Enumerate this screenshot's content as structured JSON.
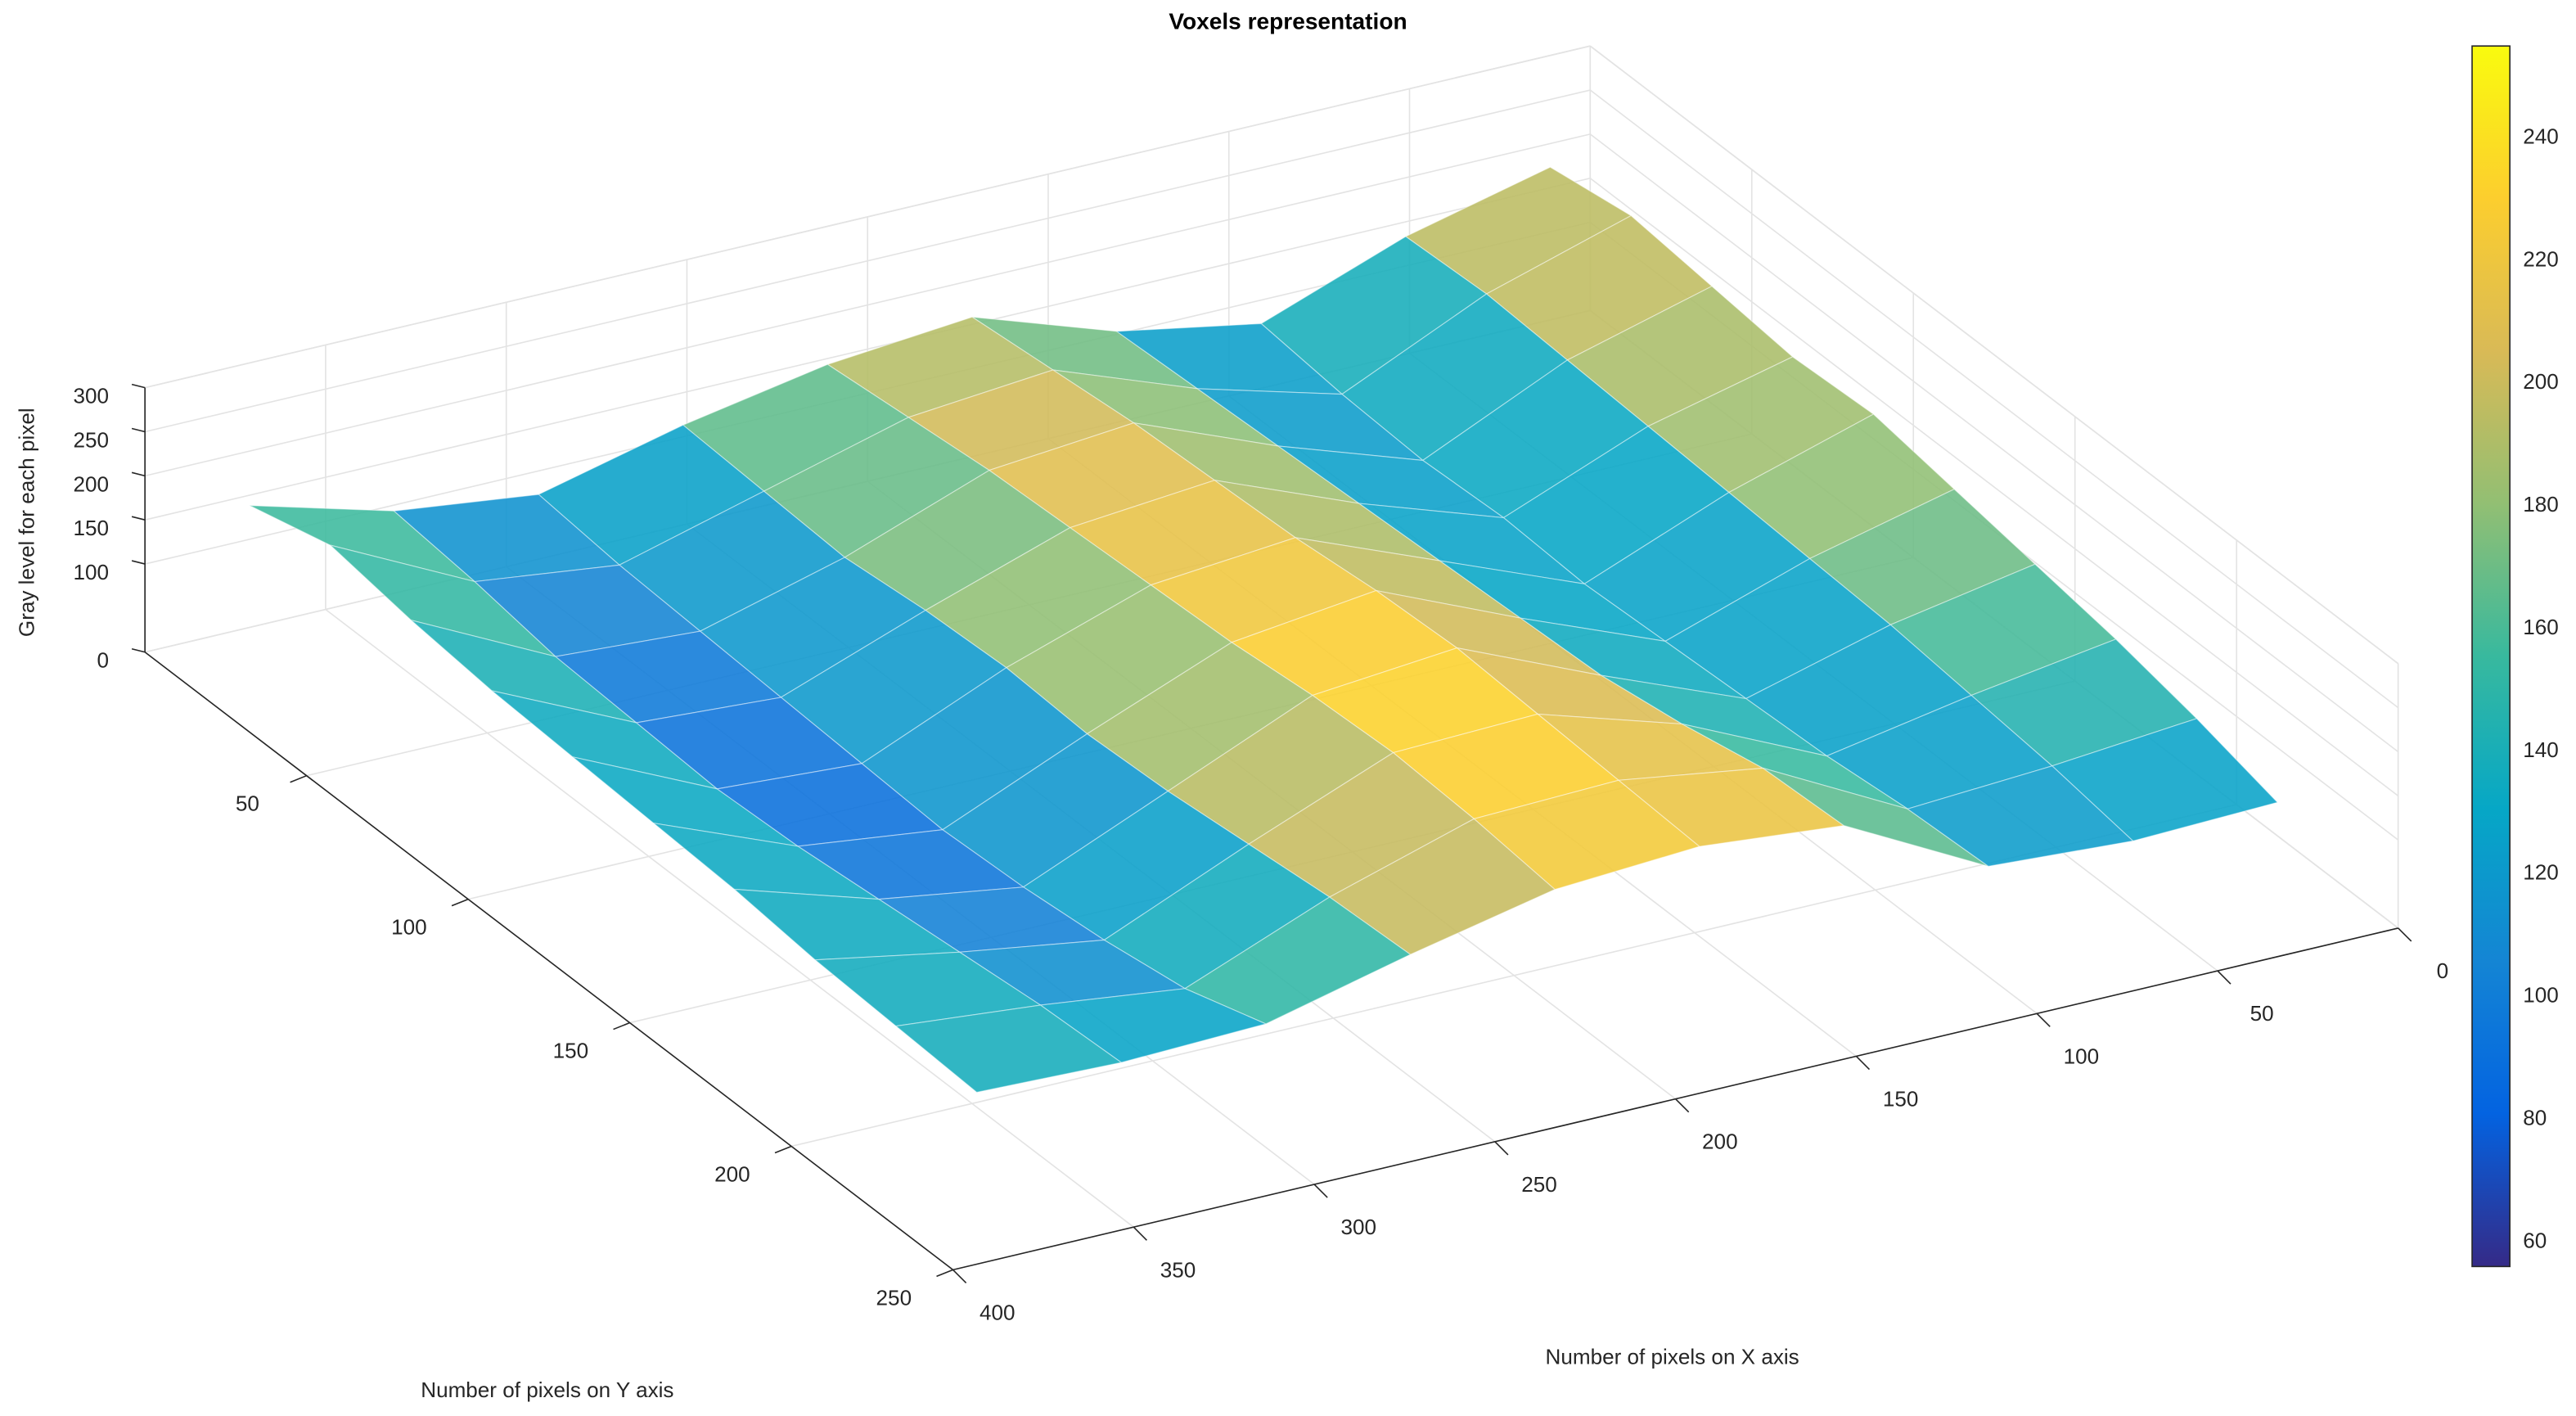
{
  "chart_data": {
    "type": "mesh",
    "title": "Voxels representation",
    "xlabel": "Number of pixels on X axis",
    "ylabel": "Number of pixels on Y axis",
    "zlabel": "Gray level for each pixel",
    "x": [
      20,
      60,
      100,
      140,
      180,
      220,
      260,
      300,
      340,
      380
    ],
    "y": [
      10,
      35,
      60,
      85,
      110,
      135,
      160,
      185,
      210,
      235
    ],
    "z": [
      [
        210,
        170,
        110,
        140,
        195,
        180,
        150,
        110,
        130,
        175
      ],
      [
        225,
        175,
        100,
        145,
        205,
        190,
        145,
        100,
        120,
        200
      ],
      [
        215,
        170,
        95,
        150,
        215,
        200,
        140,
        95,
        105,
        185
      ],
      [
        205,
        165,
        100,
        155,
        220,
        205,
        150,
        90,
        100,
        175
      ],
      [
        210,
        160,
        95,
        160,
        225,
        210,
        155,
        85,
        95,
        170
      ],
      [
        195,
        155,
        100,
        165,
        235,
        215,
        150,
        80,
        100,
        165
      ],
      [
        180,
        150,
        105,
        170,
        240,
        225,
        155,
        85,
        110,
        160
      ],
      [
        165,
        140,
        110,
        185,
        235,
        230,
        165,
        95,
        120,
        150
      ],
      [
        145,
        130,
        120,
        205,
        230,
        225,
        175,
        110,
        130,
        145
      ],
      [
        120,
        115,
        125,
        210,
        225,
        215,
        180,
        140,
        135,
        140
      ]
    ],
    "xlim": [
      0,
      400
    ],
    "ylim": [
      0,
      250
    ],
    "zlim": [
      0,
      300
    ],
    "xticks": [
      0,
      50,
      100,
      150,
      200,
      250,
      300,
      350,
      400
    ],
    "yticks": [
      50,
      100,
      150,
      200,
      250
    ],
    "zticks": [
      0,
      100,
      150,
      200,
      250,
      300
    ],
    "clim": [
      56,
      255
    ],
    "cticks": [
      60,
      80,
      100,
      120,
      140,
      160,
      180,
      200,
      220,
      240
    ],
    "colormap": [
      "#352a87",
      "#0363e1",
      "#1485d4",
      "#06a7c6",
      "#38b99e",
      "#92bf73",
      "#d9ba56",
      "#fcce2e",
      "#f9fb0e"
    ],
    "grid": true
  }
}
